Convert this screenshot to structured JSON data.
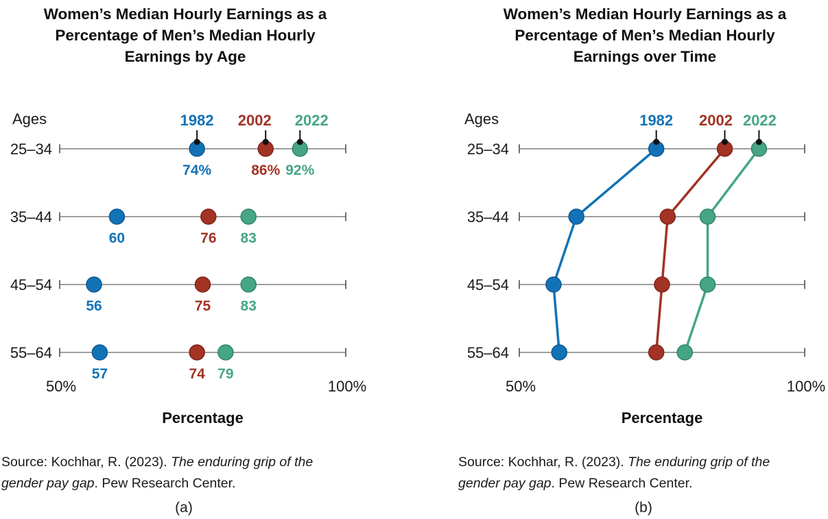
{
  "accent_colors": {
    "series_1982": "#1272B6",
    "series_2002": "#A23325",
    "series_2022": "#46A587",
    "axis_line": "#909090",
    "axis_cap": "#6F6F6F",
    "text": "#1a1a1a",
    "leader": "#111111"
  },
  "panels": [
    {
      "caption": "(a)",
      "title_lines": [
        "Women’s Median Hourly Earnings as a",
        "Percentage of Men’s Median Hourly",
        "Earnings by Age"
      ],
      "ages_header": "Ages",
      "xlabel": "Percentage",
      "source": {
        "prefix": "Source: Kochhar, R. (2023). ",
        "italic_line1": "The enduring grip of the",
        "italic_line2": "gender pay gap",
        "suffix": ". Pew Research Center."
      }
    },
    {
      "caption": "(b)",
      "title_lines": [
        "Women’s Median Hourly Earnings as a",
        "Percentage of Men’s Median Hourly",
        "Earnings over Time"
      ],
      "ages_header": "Ages",
      "xlabel": "Percentage",
      "source": {
        "prefix": "Source: Kochhar, R. (2023). ",
        "italic_line1": "The enduring grip of the",
        "italic_line2": "gender pay gap",
        "suffix": ". Pew Research Center."
      }
    }
  ],
  "chart_data": [
    {
      "type": "scatter",
      "subtype": "dot-plot",
      "title": "Women’s Median Hourly Earnings as a Percentage of Men’s Median Hourly Earnings by Age",
      "categories": [
        "25–34",
        "35–44",
        "45–54",
        "55–64"
      ],
      "series": [
        {
          "name": "1982",
          "color": "#1272B6",
          "edge_color": "#0C5890",
          "values": [
            74,
            60,
            56,
            57
          ],
          "labels": [
            "74%",
            "60",
            "56",
            "57"
          ]
        },
        {
          "name": "2002",
          "color": "#A23325",
          "edge_color": "#7E2518",
          "values": [
            86,
            76,
            75,
            74
          ],
          "labels": [
            "86%",
            "76",
            "75",
            "74"
          ]
        },
        {
          "name": "2022",
          "color": "#46A587",
          "edge_color": "#2F8468",
          "values": [
            92,
            83,
            83,
            79
          ],
          "labels": [
            "92%",
            "83",
            "83",
            "79"
          ]
        }
      ],
      "connect_points": false,
      "xlim": [
        50,
        100
      ],
      "xtick_labels": [
        "50%",
        "100%"
      ],
      "xlabel": "Percentage",
      "ylabel_header": "Ages",
      "legend_position": "top",
      "grid": false
    },
    {
      "type": "line",
      "subtype": "dot-plot-connected",
      "title": "Women’s Median Hourly Earnings as a Percentage of Men’s Median Hourly Earnings over Time",
      "categories": [
        "25–34",
        "35–44",
        "45–54",
        "55–64"
      ],
      "series": [
        {
          "name": "1982",
          "color": "#1272B6",
          "edge_color": "#0C5890",
          "values": [
            74,
            60,
            56,
            57
          ]
        },
        {
          "name": "2002",
          "color": "#A23325",
          "edge_color": "#7E2518",
          "values": [
            86,
            76,
            75,
            74
          ]
        },
        {
          "name": "2022",
          "color": "#46A587",
          "edge_color": "#2F8468",
          "values": [
            92,
            83,
            83,
            79
          ]
        }
      ],
      "connect_points": true,
      "xlim": [
        50,
        100
      ],
      "xtick_labels": [
        "50%",
        "100%"
      ],
      "xlabel": "Percentage",
      "ylabel_header": "Ages",
      "legend_position": "top",
      "grid": false
    }
  ]
}
